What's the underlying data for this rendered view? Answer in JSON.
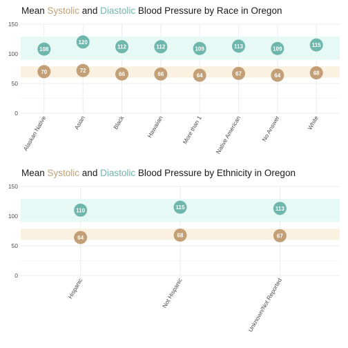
{
  "colors": {
    "systolic": "#6fb6ad",
    "diastolic": "#c39f78",
    "systolic_band": "#e3f8f4",
    "diastolic_band": "#f9efdd",
    "systolic_word": "#c39f78",
    "diastolic_word": "#6fb6ad",
    "grid": "#ebebeb"
  },
  "chart_data": [
    {
      "type": "scatter",
      "title_parts": [
        "Mean ",
        "Systolic",
        " and ",
        "Diastolic",
        " Blood Pressure by Race in Oregon"
      ],
      "xlabel": "",
      "ylabel": "",
      "ylim": [
        0,
        150
      ],
      "yticks": [
        0,
        50,
        100,
        150
      ],
      "bands": [
        {
          "name": "systolic",
          "range": [
            90,
            129
          ]
        },
        {
          "name": "diastolic",
          "range": [
            60,
            79
          ]
        }
      ],
      "categories": [
        "Alaskan Native",
        "Asian",
        "Black",
        "Hawaiian",
        "More than 1",
        "Native American",
        "No Answer",
        "White"
      ],
      "series": [
        {
          "key": "systolic",
          "values": [
            108,
            120,
            112,
            112,
            109,
            113,
            109,
            115
          ]
        },
        {
          "key": "diastolic",
          "values": [
            70,
            72,
            66,
            66,
            64,
            67,
            64,
            68
          ]
        }
      ]
    },
    {
      "type": "scatter",
      "title_parts": [
        "Mean ",
        "Systolic",
        " and ",
        "Diastolic",
        " Blood Pressure by Ethnicity in Oregon"
      ],
      "xlabel": "",
      "ylabel": "",
      "ylim": [
        0,
        150
      ],
      "yticks": [
        0,
        50,
        100,
        150
      ],
      "bands": [
        {
          "name": "systolic",
          "range": [
            90,
            129
          ]
        },
        {
          "name": "diastolic",
          "range": [
            60,
            79
          ]
        }
      ],
      "categories": [
        "Hispanic",
        "Not Hispanic",
        "Unknown/Not Reported"
      ],
      "series": [
        {
          "key": "systolic",
          "values": [
            110,
            115,
            113
          ]
        },
        {
          "key": "diastolic",
          "values": [
            64,
            68,
            67
          ]
        }
      ]
    }
  ]
}
